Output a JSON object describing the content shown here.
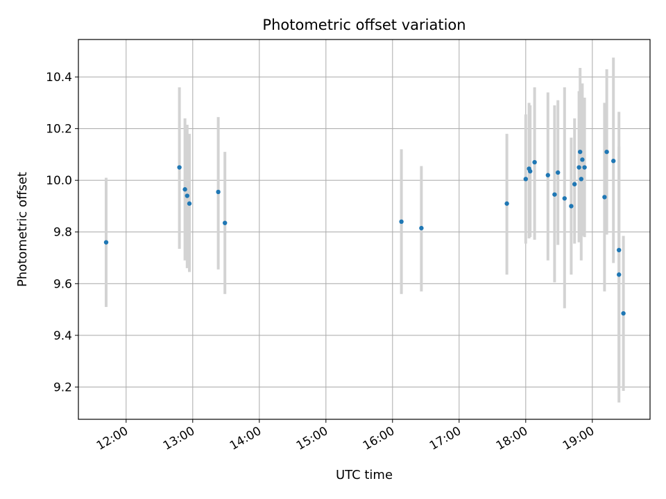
{
  "chart_data": {
    "type": "scatter",
    "title": "Photometric offset variation",
    "xlabel": "UTC time",
    "ylabel": "Photometric offset",
    "x_unit": "UTC hours",
    "xlim": [
      "11:17",
      "19:52"
    ],
    "ylim": [
      9.075,
      10.545
    ],
    "grid": true,
    "x_ticks": [
      "12:00",
      "13:00",
      "14:00",
      "15:00",
      "16:00",
      "17:00",
      "18:00",
      "19:00"
    ],
    "y_ticks": [
      "9.2",
      "9.4",
      "9.6",
      "9.8",
      "10.0",
      "10.2",
      "10.4"
    ],
    "point_color": "#1f77b4",
    "errorbar_color": "#d3d3d3",
    "series": [
      {
        "points": [
          {
            "t": "11:42",
            "y": 9.76,
            "lo": 9.51,
            "hi": 10.01
          },
          {
            "t": "12:48",
            "y": 10.05,
            "lo": 9.735,
            "hi": 10.36
          },
          {
            "t": "12:53",
            "y": 9.965,
            "lo": 9.69,
            "hi": 10.24
          },
          {
            "t": "12:55",
            "y": 9.94,
            "lo": 9.66,
            "hi": 10.215
          },
          {
            "t": "12:57",
            "y": 9.91,
            "lo": 9.645,
            "hi": 10.18
          },
          {
            "t": "13:23",
            "y": 9.955,
            "lo": 9.655,
            "hi": 10.245
          },
          {
            "t": "13:29",
            "y": 9.835,
            "lo": 9.56,
            "hi": 10.11
          },
          {
            "t": "16:08",
            "y": 9.84,
            "lo": 9.56,
            "hi": 10.12
          },
          {
            "t": "16:26",
            "y": 9.815,
            "lo": 9.57,
            "hi": 10.055
          },
          {
            "t": "17:43",
            "y": 9.91,
            "lo": 9.635,
            "hi": 10.18
          },
          {
            "t": "18:00",
            "y": 10.005,
            "lo": 9.755,
            "hi": 10.255
          },
          {
            "t": "18:03",
            "y": 10.045,
            "lo": 9.775,
            "hi": 10.3
          },
          {
            "t": "18:04",
            "y": 10.035,
            "lo": 9.78,
            "hi": 10.29
          },
          {
            "t": "18:08",
            "y": 10.07,
            "lo": 9.77,
            "hi": 10.36
          },
          {
            "t": "18:20",
            "y": 10.02,
            "lo": 9.69,
            "hi": 10.34
          },
          {
            "t": "18:26",
            "y": 9.945,
            "lo": 9.605,
            "hi": 10.29
          },
          {
            "t": "18:29",
            "y": 10.03,
            "lo": 9.75,
            "hi": 10.31
          },
          {
            "t": "18:35",
            "y": 9.93,
            "lo": 9.505,
            "hi": 10.36
          },
          {
            "t": "18:41",
            "y": 9.9,
            "lo": 9.635,
            "hi": 10.165
          },
          {
            "t": "18:44",
            "y": 9.985,
            "lo": 9.755,
            "hi": 10.24
          },
          {
            "t": "18:48",
            "y": 10.05,
            "lo": 9.76,
            "hi": 10.345
          },
          {
            "t": "18:49",
            "y": 10.11,
            "lo": 9.785,
            "hi": 10.435
          },
          {
            "t": "18:50",
            "y": 10.005,
            "lo": 9.69,
            "hi": 10.32
          },
          {
            "t": "18:51",
            "y": 10.08,
            "lo": 9.785,
            "hi": 10.375
          },
          {
            "t": "18:53",
            "y": 10.05,
            "lo": 9.78,
            "hi": 10.32
          },
          {
            "t": "19:11",
            "y": 9.935,
            "lo": 9.57,
            "hi": 10.3
          },
          {
            "t": "19:13",
            "y": 10.11,
            "lo": 9.79,
            "hi": 10.43
          },
          {
            "t": "19:19",
            "y": 10.075,
            "lo": 9.68,
            "hi": 10.475
          },
          {
            "t": "19:24",
            "y": 9.73,
            "lo": 9.195,
            "hi": 10.265
          },
          {
            "t": "19:24",
            "y": 9.635,
            "lo": 9.14,
            "hi": 10.13
          },
          {
            "t": "19:28",
            "y": 9.485,
            "lo": 9.185,
            "hi": 9.785
          }
        ]
      }
    ]
  }
}
